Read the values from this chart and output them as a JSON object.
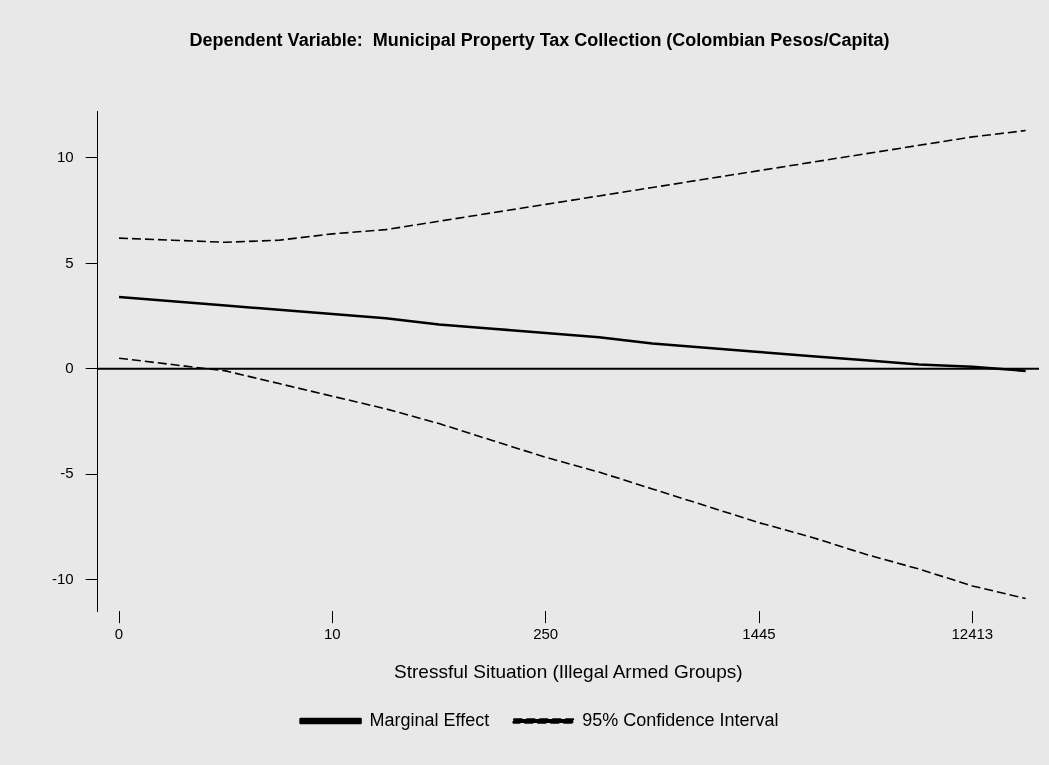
{
  "chart_data": {
    "type": "line",
    "title": "Dependent Variable:  Municipal Property Tax Collection (Colombian Pesos/Capita)",
    "xlabel": "Stressful Situation (Illegal Armed Groups)",
    "categories": [
      "0",
      null,
      null,
      null,
      "10",
      null,
      null,
      null,
      "250",
      null,
      null,
      null,
      "1445",
      null,
      null,
      null,
      "12413",
      null
    ],
    "series": [
      {
        "name": "Marginal Effect",
        "color": "#000000",
        "line_style": "solid",
        "values": [
          3.4,
          3.2,
          3.0,
          2.8,
          2.6,
          2.4,
          2.1,
          1.9,
          1.7,
          1.5,
          1.2,
          1.0,
          0.8,
          0.6,
          0.4,
          0.2,
          0.1,
          -0.1
        ]
      },
      {
        "name": "95% Confidence Interval",
        "color": "#000000",
        "line_style": "dashed",
        "values": [
          6.2,
          6.1,
          6.0,
          6.1,
          6.4,
          6.6,
          7.0,
          7.4,
          7.8,
          8.2,
          8.6,
          9.0,
          9.4,
          9.8,
          10.2,
          10.6,
          11.0,
          11.3
        ]
      },
      {
        "color": "#000000",
        "line_style": "dashed",
        "values": [
          0.5,
          0.2,
          -0.1,
          -0.7,
          -1.3,
          -1.9,
          -2.6,
          -3.4,
          -4.2,
          -4.9,
          -5.7,
          -6.5,
          -7.3,
          -8.0,
          -8.8,
          -9.5,
          -10.3,
          -10.9
        ]
      }
    ],
    "ylim": [
      -11.5,
      12.2
    ],
    "yticks": [
      -10,
      -5,
      0,
      5,
      10
    ],
    "ref_lines": [
      {
        "axis": "y",
        "value": 0,
        "color": "#000000",
        "line_style": "solid"
      }
    ],
    "legend": "bottom",
    "marker": "none"
  }
}
